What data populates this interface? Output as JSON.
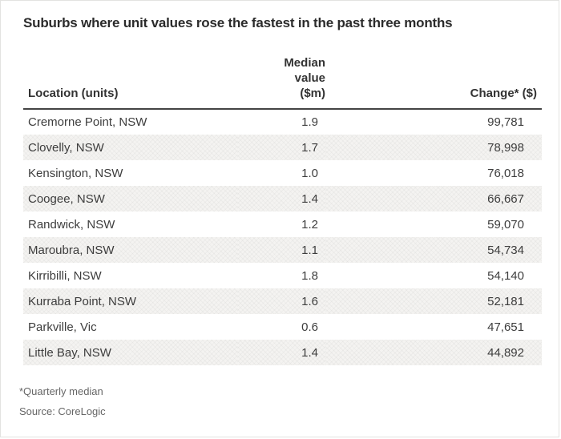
{
  "title": "Suburbs where unit values rose the fastest in the past three months",
  "table": {
    "headers": {
      "location": "Location (units)",
      "median": "Median\nvalue\n($m)",
      "change": "Change* ($)"
    },
    "rows": [
      {
        "location": "Cremorne Point, NSW",
        "median": "1.9",
        "change": "99,781"
      },
      {
        "location": "Clovelly, NSW",
        "median": "1.7",
        "change": "78,998"
      },
      {
        "location": "Kensington, NSW",
        "median": "1.0",
        "change": "76,018"
      },
      {
        "location": "Coogee, NSW",
        "median": "1.4",
        "change": "66,667"
      },
      {
        "location": "Randwick, NSW",
        "median": "1.2",
        "change": "59,070"
      },
      {
        "location": "Maroubra, NSW",
        "median": "1.1",
        "change": "54,734"
      },
      {
        "location": "Kirribilli, NSW",
        "median": "1.8",
        "change": "54,140"
      },
      {
        "location": "Kurraba Point, NSW",
        "median": "1.6",
        "change": "52,181"
      },
      {
        "location": "Parkville, Vic",
        "median": "0.6",
        "change": "47,651"
      },
      {
        "location": "Little Bay, NSW",
        "median": "1.4",
        "change": "44,892"
      }
    ]
  },
  "footnotes": [
    "*Quarterly median",
    "Source: CoreLogic"
  ],
  "colors": {
    "title_text": "#2b2b2b",
    "body_text": "#3d3d3d",
    "header_rule": "#444444",
    "alt_row_bg": "#f4f3f1",
    "footnote_text": "#666666",
    "page_border": "#e3e3e1",
    "background": "#ffffff"
  },
  "chart_data": {
    "type": "table",
    "title": "Suburbs where unit values rose the fastest in the past three months",
    "columns": [
      "Location (units)",
      "Median value ($m)",
      "Change* ($)"
    ],
    "rows": [
      [
        "Cremorne Point, NSW",
        1.9,
        99781
      ],
      [
        "Clovelly, NSW",
        1.7,
        78998
      ],
      [
        "Kensington, NSW",
        1.0,
        76018
      ],
      [
        "Coogee, NSW",
        1.4,
        66667
      ],
      [
        "Randwick, NSW",
        1.2,
        59070
      ],
      [
        "Maroubra, NSW",
        1.1,
        54734
      ],
      [
        "Kirribilli, NSW",
        1.8,
        54140
      ],
      [
        "Kurraba Point, NSW",
        1.6,
        52181
      ],
      [
        "Parkville, Vic",
        0.6,
        47651
      ],
      [
        "Little Bay, NSW",
        1.4,
        44892
      ]
    ],
    "footnotes": [
      "*Quarterly median",
      "Source: CoreLogic"
    ],
    "layout": {
      "alternating_row_shading": true,
      "header_rule": true
    }
  }
}
